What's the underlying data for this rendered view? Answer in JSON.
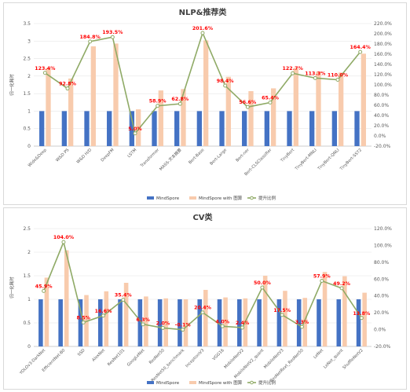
{
  "chart_data": [
    {
      "type": "bar",
      "title": "NLP&推荐类",
      "ylabel": "归一化耗时",
      "ylim": [
        0,
        3.5
      ],
      "y2lim": [
        -20,
        220
      ],
      "yticks": [
        "0",
        "0.5",
        "1",
        "1.5",
        "2",
        "2.5",
        "3",
        "3.5"
      ],
      "y2ticks": [
        "-20.0%",
        "0.0%",
        "20.0%",
        "40.0%",
        "60.0%",
        "80.0%",
        "100.0%",
        "120.0%",
        "140.0%",
        "160.0%",
        "180.0%",
        "200.0%",
        "220.0%"
      ],
      "categories": [
        "Wide&Deep",
        "W&D PS",
        "W&D H/D",
        "DeepFM",
        "LSTM",
        "Transformer",
        "MASS-文本摘要",
        "Bert-Base",
        "Bert-Large",
        "Bert-ner",
        "Bert-CLSClassifier",
        "TinyBert",
        "TinyBert-MNLI",
        "TinyBert-QNLI",
        "TinyBert-SST2"
      ],
      "series": [
        {
          "name": "MindSpore",
          "type": "bar",
          "color": "#4472c4",
          "values": [
            1,
            1,
            1,
            1,
            1,
            1,
            1,
            1,
            1,
            1,
            1,
            1,
            1,
            1,
            1
          ]
        },
        {
          "name": "MindSpore with 图算",
          "type": "bar",
          "color": "#f8cbad",
          "values": [
            2.23,
            1.93,
            2.85,
            2.93,
            1.05,
            1.59,
            1.63,
            3.02,
            1.98,
            1.57,
            1.65,
            2.23,
            2.13,
            2.1,
            2.64
          ]
        },
        {
          "name": "提升比例",
          "type": "line",
          "axis": "right",
          "color": "#8faa66",
          "values": [
            123.4,
            92.8,
            184.8,
            193.5,
            5.0,
            58.9,
            62.8,
            201.6,
            98.4,
            56.6,
            65.4,
            122.7,
            113.3,
            110.0,
            164.4
          ],
          "labels": [
            "123.4%",
            "92.8%",
            "184.8%",
            "193.5%",
            "5.0%",
            "58.9%",
            "62.8%",
            "201.6%",
            "98.4%",
            "56.6%",
            "65.4%",
            "122.7%",
            "113.3%",
            "110.0%",
            "164.4%"
          ]
        }
      ],
      "legend": "bottom"
    },
    {
      "type": "bar",
      "title": "CV类",
      "ylabel": "归一化耗时",
      "ylim": [
        0,
        2.5
      ],
      "y2lim": [
        -20,
        120
      ],
      "yticks": [
        "0",
        "0.5",
        "1",
        "1.5",
        "2",
        "2.5"
      ],
      "y2ticks": [
        "-20.0%",
        "0.0%",
        "20.0%",
        "40.0%",
        "60.0%",
        "80.0%",
        "100.0%",
        "120.0%"
      ],
      "categories": [
        "YOLOv3-DarkNet",
        "EfficientNet-B0",
        "SSD",
        "AlexNet",
        "ResNet101",
        "GoogLeNet",
        "ResNet50",
        "ResNet50_benchmark",
        "InceptionV3",
        "VGG16",
        "MobileNetV2",
        "MobileNetV2_quant",
        "MobileNetV3",
        "ResNetRext_ResNet50",
        "LeNet",
        "LeNet_quant",
        "ShuffleNetV2"
      ],
      "series": [
        {
          "name": "MindSpore",
          "type": "bar",
          "color": "#4472c4",
          "values": [
            1,
            1,
            1,
            1,
            1,
            1,
            1,
            1,
            1,
            1,
            1,
            1,
            1,
            1,
            1,
            1,
            1
          ]
        },
        {
          "name": "MindSpore with 图算",
          "type": "bar",
          "color": "#f8cbad",
          "values": [
            1.46,
            2.04,
            1.09,
            1.17,
            1.35,
            1.06,
            1.02,
            1.0,
            1.2,
            1.04,
            1.02,
            1.5,
            1.18,
            1.03,
            1.58,
            1.49,
            1.14
          ]
        },
        {
          "name": "提升比例",
          "type": "line",
          "axis": "right",
          "color": "#8faa66",
          "values": [
            45.9,
            104.0,
            8.5,
            16.6,
            35.4,
            6.3,
            2.0,
            -0.1,
            20.4,
            4.0,
            2.4,
            50.0,
            17.5,
            3.3,
            57.9,
            49.2,
            13.8
          ],
          "labels": [
            "45.9%",
            "104.0%",
            "8.5%",
            "16.6%",
            "35.4%",
            "6.3%",
            "2.0%",
            "-0.1%",
            "20.4%",
            "4.0%",
            "2.4%",
            "50.0%",
            "17.5%",
            "3.3%",
            "57.9%",
            "49.2%",
            "13.8%"
          ]
        }
      ],
      "legend": "bottom"
    }
  ]
}
